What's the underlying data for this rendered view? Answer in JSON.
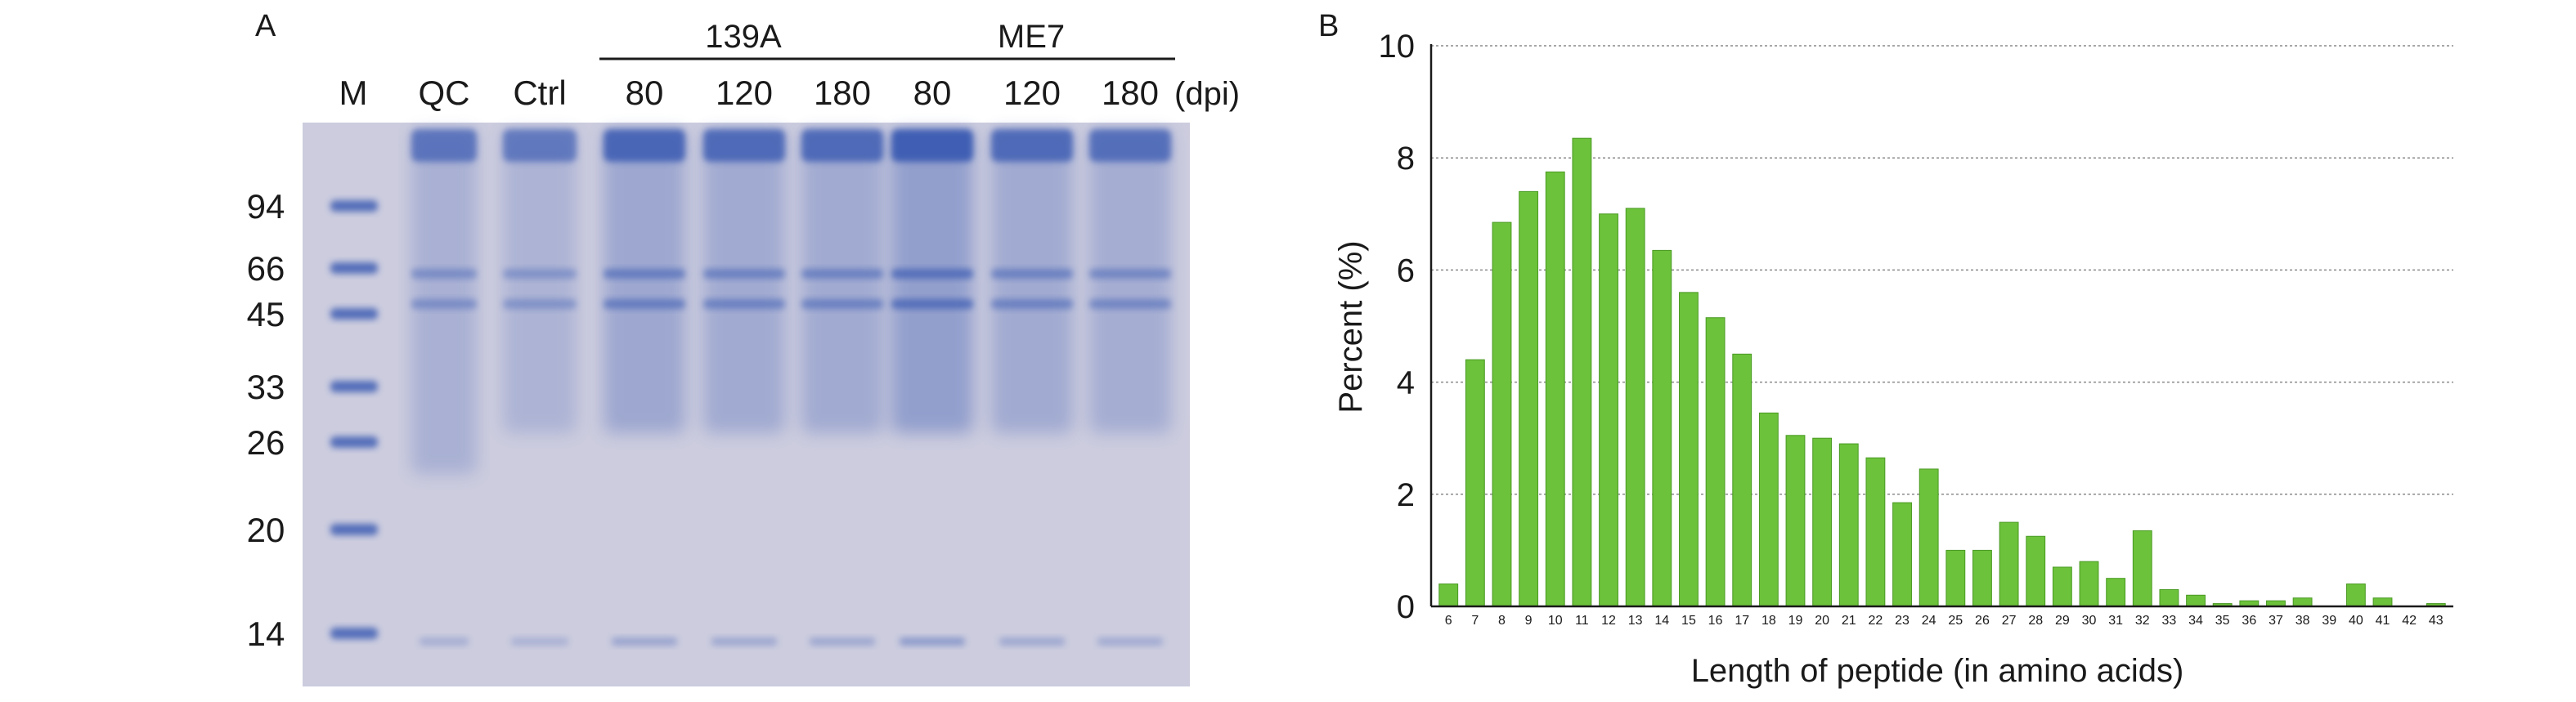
{
  "figure": {
    "panel_a_letter": "A",
    "panel_b_letter": "B"
  },
  "gel": {
    "lane_labels": [
      "M",
      "QC",
      "Ctrl",
      "80",
      "120",
      "180",
      "80",
      "120",
      "180"
    ],
    "dpi_label": "(dpi)",
    "groups": [
      {
        "name": "139A",
        "lanes": [
          3,
          4,
          5
        ]
      },
      {
        "name": "ME7",
        "lanes": [
          6,
          7,
          8
        ]
      }
    ],
    "marker_sizes": [
      "94",
      "66",
      "45",
      "33",
      "26",
      "20",
      "14"
    ],
    "colors": {
      "background": "#ccccde",
      "stain": "#3f5fb4"
    }
  },
  "chart_data": {
    "type": "bar",
    "categories": [
      "6",
      "7",
      "8",
      "9",
      "10",
      "11",
      "12",
      "13",
      "14",
      "15",
      "16",
      "17",
      "18",
      "19",
      "20",
      "21",
      "22",
      "23",
      "24",
      "25",
      "26",
      "27",
      "28",
      "29",
      "30",
      "31",
      "32",
      "33",
      "34",
      "35",
      "36",
      "37",
      "38",
      "39",
      "40",
      "41",
      "42",
      "43"
    ],
    "values": [
      0.4,
      4.4,
      6.85,
      7.4,
      7.75,
      8.35,
      7.0,
      7.1,
      6.35,
      5.6,
      5.15,
      4.5,
      3.45,
      3.05,
      3.0,
      2.9,
      2.65,
      1.85,
      2.45,
      1.0,
      1.0,
      1.5,
      1.25,
      0.7,
      0.8,
      0.5,
      1.35,
      0.3,
      0.2,
      0.05,
      0.1,
      0.1,
      0.15,
      0.0,
      0.4,
      0.15,
      0.0,
      0.05
    ],
    "xlabel": "Length of peptide (in amino acids)",
    "ylabel": "Percent (%)",
    "ylim": [
      0,
      10
    ],
    "yticks": [
      "0",
      "2",
      "4",
      "6",
      "8",
      "10"
    ],
    "grid": true,
    "bar_color": "#6cc23a"
  }
}
